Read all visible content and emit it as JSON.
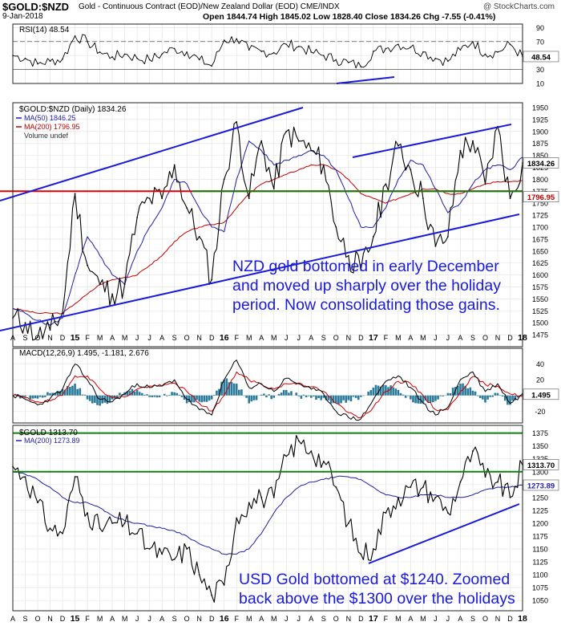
{
  "header": {
    "symbol": "$GOLD:$NZD",
    "description": "Gold - Continuous Contract (EOD)/New Zealand Dollar (EOD) CME/INDX",
    "date": "9-Jan-2018",
    "ohlc": "Open 1844.74  High 1845.02  Low 1828.40  Close 1834.26  Chg -7.55 (-0.41%)",
    "watermark": "@ StockCharts.com"
  },
  "annotations": {
    "nzd_note": [
      "NZD gold bottomed in early December",
      "and moved up sharply over the holiday",
      "period. Now consolidating those gains."
    ],
    "usd_note": [
      "USD Gold bottomed at $1240. Zoomed",
      "back above the $1300 over the holidays"
    ]
  },
  "colors": {
    "price": "#000000",
    "ma50": "#1f1fa8",
    "ma200": "#c00000",
    "trend_blue": "#1a1adb",
    "support_red": "#e00000",
    "support_green": "#108010",
    "macd_hist": "#2a7a9a"
  },
  "chart_data": [
    {
      "type": "line",
      "panel": "rsi",
      "title": "RSI(14) 48.54",
      "ylim": [
        10,
        95
      ],
      "y_ticks": [
        10,
        30,
        50,
        70,
        90
      ],
      "guides": [
        30,
        70
      ],
      "last_value_label": "48.54",
      "x": [
        "A",
        "S",
        "O",
        "N",
        "D",
        "15",
        "F",
        "M",
        "A",
        "M",
        "J",
        "J",
        "A",
        "S",
        "O",
        "N",
        "D",
        "16",
        "F",
        "M",
        "A",
        "M",
        "J",
        "J",
        "A",
        "S",
        "O",
        "N",
        "D",
        "17",
        "F",
        "M",
        "A",
        "M",
        "J",
        "J",
        "A",
        "S",
        "O",
        "N",
        "D",
        "18"
      ],
      "values": [
        50,
        46,
        38,
        42,
        45,
        78,
        70,
        55,
        48,
        52,
        46,
        44,
        52,
        60,
        55,
        44,
        35,
        72,
        74,
        58,
        56,
        54,
        66,
        63,
        55,
        50,
        44,
        40,
        34,
        56,
        60,
        66,
        62,
        55,
        46,
        42,
        58,
        70,
        52,
        55,
        66,
        48.54
      ]
    },
    {
      "type": "line",
      "panel": "price",
      "title": "$GOLD:$NZD (Daily) 1834.26",
      "ylim": [
        1450,
        1960
      ],
      "y_ticks": [
        1475,
        1500,
        1525,
        1550,
        1575,
        1600,
        1625,
        1650,
        1675,
        1700,
        1725,
        1750,
        1775,
        1800,
        1825,
        1850,
        1875,
        1900,
        1925,
        1950
      ],
      "last_value_labels": [
        "1834.26",
        "1796.95"
      ],
      "series": [
        {
          "name": "MA(50) 1846.25",
          "values": [
            1530,
            1520,
            1505,
            1495,
            1510,
            1600,
            1680,
            1640,
            1600,
            1580,
            1650,
            1700,
            1740,
            1800,
            1790,
            1740,
            1700,
            1690,
            1800,
            1880,
            1860,
            1830,
            1840,
            1850,
            1860,
            1850,
            1820,
            1760,
            1700,
            1700,
            1740,
            1800,
            1840,
            1830,
            1780,
            1730,
            1750,
            1790,
            1820,
            1830,
            1820,
            1846.25
          ]
        },
        {
          "name": "MA(200) 1796.95",
          "values": [
            1530,
            1525,
            1520,
            1520,
            1520,
            1540,
            1560,
            1580,
            1590,
            1595,
            1600,
            1620,
            1640,
            1670,
            1690,
            1700,
            1705,
            1710,
            1740,
            1770,
            1790,
            1800,
            1810,
            1820,
            1830,
            1830,
            1820,
            1800,
            1770,
            1760,
            1750,
            1760,
            1770,
            1780,
            1780,
            1770,
            1770,
            1780,
            1790,
            1795,
            1795,
            1796.95
          ]
        },
        {
          "name": "$GOLD:$NZD",
          "values": [
            1510,
            1500,
            1470,
            1485,
            1520,
            1770,
            1620,
            1580,
            1560,
            1580,
            1720,
            1760,
            1760,
            1830,
            1740,
            1680,
            1590,
            1800,
            1920,
            1760,
            1880,
            1780,
            1900,
            1880,
            1860,
            1830,
            1700,
            1640,
            1610,
            1680,
            1790,
            1870,
            1820,
            1760,
            1660,
            1680,
            1860,
            1880,
            1790,
            1910,
            1760,
            1834.26
          ]
        },
        {
          "name": "Volume undef",
          "values": []
        }
      ],
      "lines": [
        {
          "kind": "horizontal",
          "value": 1775,
          "color": "support_red"
        },
        {
          "kind": "horizontal",
          "value": 1775,
          "color": "support_green"
        }
      ]
    },
    {
      "type": "line",
      "panel": "macd",
      "title": "MACD(12,26,9) 1.495, -1.181, 2.676",
      "ylim": [
        -35,
        60
      ],
      "y_ticks": [
        -20,
        0,
        20,
        40
      ],
      "last_value_label": "1.495",
      "series": [
        {
          "name": "MACD",
          "values": [
            0,
            -5,
            -12,
            -4,
            8,
            40,
            20,
            -5,
            -8,
            2,
            15,
            10,
            12,
            20,
            -5,
            -18,
            -25,
            20,
            45,
            10,
            15,
            5,
            22,
            15,
            8,
            2,
            -20,
            -28,
            -30,
            -5,
            18,
            25,
            10,
            -10,
            -25,
            -15,
            20,
            30,
            5,
            15,
            -10,
            1.495
          ]
        },
        {
          "name": "Signal",
          "values": [
            0,
            -3,
            -8,
            -7,
            0,
            25,
            25,
            8,
            -3,
            -2,
            8,
            12,
            12,
            16,
            5,
            -10,
            -20,
            0,
            30,
            20,
            14,
            8,
            15,
            16,
            11,
            5,
            -10,
            -22,
            -28,
            -15,
            5,
            18,
            15,
            0,
            -18,
            -18,
            5,
            24,
            14,
            12,
            2,
            -1.181
          ]
        },
        {
          "name": "Histogram",
          "values": [
            0,
            -2,
            -4,
            3,
            8,
            15,
            -5,
            -13,
            -5,
            4,
            7,
            -2,
            0,
            4,
            -10,
            -8,
            -5,
            20,
            15,
            -10,
            1,
            -3,
            7,
            -1,
            -3,
            -3,
            -10,
            -6,
            -2,
            10,
            13,
            7,
            -5,
            -10,
            -7,
            3,
            15,
            6,
            -9,
            3,
            -12,
            2.676
          ]
        }
      ]
    },
    {
      "type": "line",
      "panel": "usd_gold",
      "title": "$GOLD 1313.70",
      "ylim": [
        1030,
        1390
      ],
      "y_ticks": [
        1050,
        1075,
        1100,
        1125,
        1150,
        1175,
        1200,
        1225,
        1250,
        1275,
        1300,
        1325,
        1350,
        1375
      ],
      "last_value_labels": [
        "1313.70",
        "1273.89"
      ],
      "series": [
        {
          "name": "MA(200) 1273.89",
          "values": [
            1300,
            1295,
            1285,
            1270,
            1250,
            1240,
            1240,
            1230,
            1215,
            1205,
            1200,
            1195,
            1190,
            1185,
            1175,
            1160,
            1150,
            1140,
            1140,
            1150,
            1180,
            1220,
            1250,
            1270,
            1280,
            1285,
            1290,
            1290,
            1285,
            1270,
            1255,
            1250,
            1250,
            1255,
            1255,
            1250,
            1250,
            1255,
            1265,
            1270,
            1270,
            1273.89
          ]
        },
        {
          "name": "$GOLD",
          "values": [
            1310,
            1290,
            1240,
            1190,
            1180,
            1290,
            1220,
            1190,
            1200,
            1200,
            1180,
            1150,
            1140,
            1130,
            1150,
            1100,
            1060,
            1080,
            1210,
            1240,
            1250,
            1250,
            1330,
            1360,
            1340,
            1320,
            1270,
            1200,
            1140,
            1150,
            1220,
            1250,
            1270,
            1270,
            1250,
            1220,
            1280,
            1340,
            1290,
            1280,
            1250,
            1313.7
          ]
        }
      ],
      "lines": [
        {
          "kind": "horizontal",
          "value": 1300,
          "color": "support_green"
        },
        {
          "kind": "horizontal",
          "value": 1375,
          "color": "support_green"
        }
      ]
    }
  ]
}
